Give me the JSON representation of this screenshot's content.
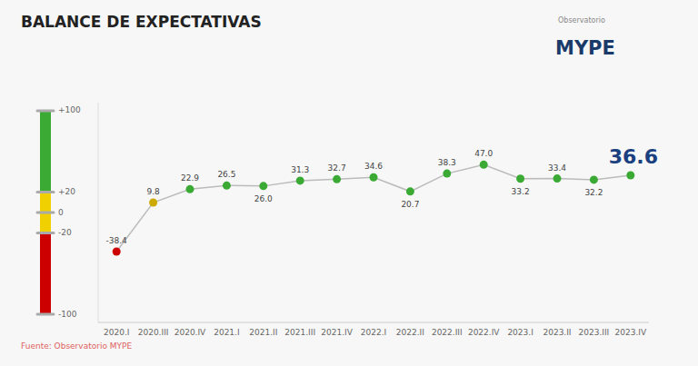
{
  "chart_data": {
    "type": "line",
    "title": "BALANCE DE EXPECTATIVAS",
    "categories": [
      "2020.I",
      "2020.III",
      "2020.IV",
      "2021.I",
      "2021.II",
      "2021.III",
      "2021.IV",
      "2022.I",
      "2022.II",
      "2022.III",
      "2022.IV",
      "2023.I",
      "2023.II",
      "2023.III",
      "2023.IV"
    ],
    "values": [
      -38.4,
      9.8,
      22.9,
      26.5,
      26.0,
      31.3,
      32.7,
      34.6,
      20.7,
      38.3,
      47.0,
      33.2,
      33.4,
      32.2,
      36.6
    ],
    "value_labels": [
      "-38.4",
      "9.8",
      "22.9",
      "26.5",
      "26.0",
      "31.3",
      "32.7",
      "34.6",
      "20.7",
      "38.3",
      "47.0",
      "33.2",
      "33.4",
      "32.2",
      "36.6"
    ],
    "color": "#bbbbbb",
    "colors": [
      "#cc0000",
      "#ccaa00",
      "#3aaa35",
      "#3aaa35",
      "#3aaa35",
      "#3aaa35",
      "#3aaa35",
      "#3aaa35",
      "#3aaa35",
      "#3aaa35",
      "#3aaa35",
      "#3aaa35",
      "#3aaa35",
      "#3aaa35",
      "#3aaa35"
    ],
    "ylim": [
      -108,
      108
    ],
    "yticks": [
      -100,
      -20,
      0,
      {
        "value": 20,
        "label": "+20"
      },
      {
        "value": 100,
        "label": "+100"
      }
    ],
    "bands": [
      {
        "from": 20,
        "to": 100,
        "color": "#3aaa35"
      },
      {
        "from": -20,
        "to": 20,
        "color": "#f0d000"
      },
      {
        "from": -100,
        "to": -20,
        "color": "#cc0000"
      }
    ],
    "data_labels": true,
    "grid": false,
    "annotations": [
      "Fuente: Observatorio MYPE",
      "Observatorio",
      "MYPE"
    ]
  }
}
